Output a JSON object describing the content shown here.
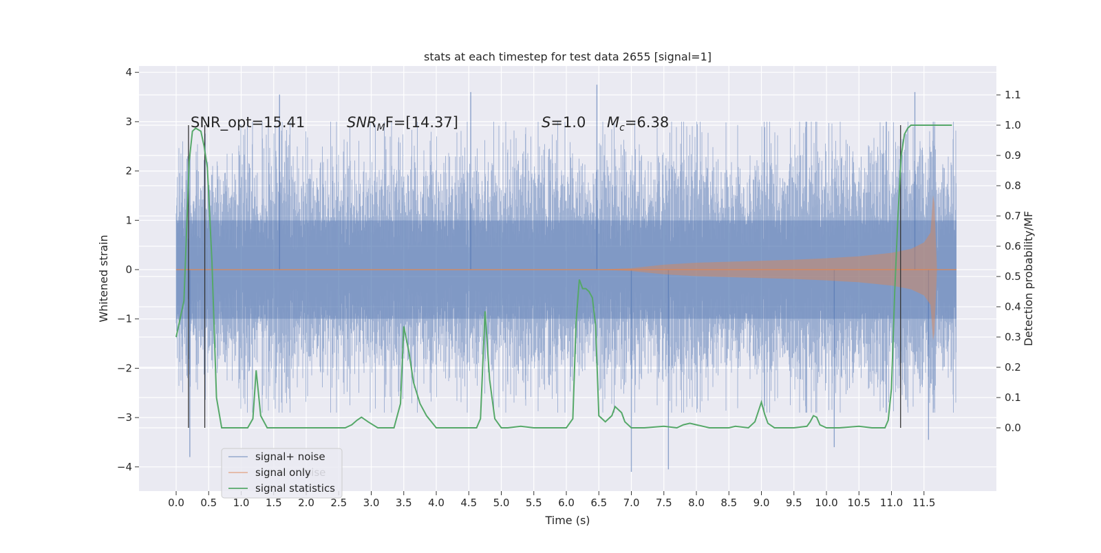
{
  "chart_data": {
    "type": "line",
    "title": "stats at each timestep for test data 2655 [signal=1]",
    "xlabel": "Time (s)",
    "ylabel_left": "Whitened strain",
    "ylabel_right": "Detection probability/MF",
    "xlim": [
      -0.6,
      12.6
    ],
    "ylim_left": [
      -4.45,
      4.1
    ],
    "ylim_right": [
      -0.2,
      1.2
    ],
    "x_ticks": [
      "0.0",
      "0.5",
      "1.0",
      "1.5",
      "2.0",
      "2.5",
      "3.0",
      "3.5",
      "4.0",
      "4.5",
      "5.0",
      "5.5",
      "6.0",
      "6.5",
      "7.0",
      "7.5",
      "8.0",
      "8.5",
      "9.0",
      "9.5",
      "10.0",
      "10.5",
      "11.0",
      "11.5"
    ],
    "y_ticks_left": [
      "−4",
      "−3",
      "−2",
      "−1",
      "0",
      "1",
      "2",
      "3",
      "4"
    ],
    "y_ticks_right": [
      "0.0",
      "0.1",
      "0.2",
      "0.3",
      "0.4",
      "0.5",
      "0.6",
      "0.7",
      "0.8",
      "0.9",
      "1.0",
      "1.1"
    ],
    "grid": true,
    "legend_position": "lower-left",
    "annotations": {
      "snr_opt": "SNR_opt=15.41",
      "snr_mf_sym": "SNR",
      "snr_mf_sub": "M",
      "snr_mf_tail": "F=[14.37]",
      "s_sym": "S",
      "s_val": "=1.0",
      "mc_sym": "M",
      "mc_sub": "c",
      "mc_val": "=6.38"
    },
    "series": [
      {
        "name": "signal+ noise",
        "color": "#4c72b0",
        "axis": "left",
        "kind": "noise band",
        "time_range": [
          0.0,
          12.0
        ],
        "typical_range": [
          -1.9,
          1.9
        ],
        "extremes": [
          {
            "x": 1.59,
            "y": 3.55
          },
          {
            "x": 4.53,
            "y": 3.6
          },
          {
            "x": 6.47,
            "y": 3.75
          },
          {
            "x": 11.36,
            "y": 3.6
          },
          {
            "x": 0.21,
            "y": -3.8
          },
          {
            "x": 7.0,
            "y": -4.1
          },
          {
            "x": 7.57,
            "y": -4.05
          },
          {
            "x": 10.12,
            "y": -3.6
          },
          {
            "x": 11.57,
            "y": -3.45
          }
        ]
      },
      {
        "name": "signal only",
        "color": "#dd8452",
        "axis": "left",
        "kind": "chirp envelope",
        "x": [
          0.0,
          6.5,
          7.0,
          7.5,
          8.0,
          8.5,
          9.0,
          9.5,
          10.0,
          10.5,
          11.0,
          11.3,
          11.5,
          11.6,
          11.65,
          11.7,
          12.0
        ],
        "amplitude": [
          0.0,
          0.0,
          0.03,
          0.1,
          0.14,
          0.16,
          0.18,
          0.2,
          0.23,
          0.27,
          0.34,
          0.42,
          0.55,
          0.75,
          1.7,
          0.0,
          0.0
        ]
      },
      {
        "name": "signal statistics",
        "color": "#55a868",
        "axis": "right",
        "x": [
          0.0,
          0.12,
          0.2,
          0.25,
          0.3,
          0.38,
          0.43,
          0.48,
          0.55,
          0.62,
          0.7,
          0.8,
          1.0,
          1.1,
          1.18,
          1.23,
          1.3,
          1.4,
          1.6,
          2.0,
          2.4,
          2.6,
          2.7,
          2.78,
          2.85,
          2.95,
          3.1,
          3.35,
          3.45,
          3.5,
          3.58,
          3.65,
          3.75,
          3.85,
          4.0,
          4.2,
          4.6,
          4.62,
          4.68,
          4.75,
          4.82,
          4.9,
          5.0,
          5.1,
          5.3,
          5.5,
          6.0,
          6.1,
          6.15,
          6.2,
          6.25,
          6.3,
          6.35,
          6.4,
          6.45,
          6.5,
          6.6,
          6.7,
          6.75,
          6.85,
          6.9,
          7.0,
          7.05,
          7.2,
          7.5,
          7.7,
          7.8,
          7.9,
          8.0,
          8.2,
          8.5,
          8.6,
          8.8,
          8.9,
          9.0,
          9.05,
          9.1,
          9.2,
          9.5,
          9.7,
          9.75,
          9.8,
          9.85,
          9.9,
          10.0,
          10.2,
          10.5,
          10.7,
          10.9,
          10.95,
          11.0,
          11.05,
          11.1,
          11.15,
          11.2,
          11.25,
          11.3,
          11.4,
          11.6,
          11.8,
          11.93
        ],
        "y": [
          0.3,
          0.42,
          0.88,
          0.98,
          0.99,
          0.98,
          0.93,
          0.86,
          0.55,
          0.1,
          0.0,
          0.0,
          0.0,
          0.0,
          0.03,
          0.19,
          0.04,
          0.0,
          0.0,
          0.0,
          0.0,
          0.0,
          0.01,
          0.025,
          0.035,
          0.02,
          0.0,
          0.0,
          0.08,
          0.335,
          0.25,
          0.15,
          0.08,
          0.04,
          0.0,
          0.0,
          0.0,
          0.0,
          0.03,
          0.385,
          0.16,
          0.03,
          0.0,
          0.0,
          0.005,
          0.0,
          0.0,
          0.03,
          0.35,
          0.49,
          0.46,
          0.46,
          0.45,
          0.43,
          0.34,
          0.04,
          0.02,
          0.04,
          0.07,
          0.05,
          0.02,
          0.0,
          0.0,
          0.0,
          0.005,
          0.0,
          0.01,
          0.015,
          0.01,
          0.0,
          0.0,
          0.005,
          0.0,
          0.02,
          0.085,
          0.045,
          0.015,
          0.0,
          0.0,
          0.005,
          0.02,
          0.04,
          0.035,
          0.01,
          0.0,
          0.0,
          0.005,
          0.0,
          0.0,
          0.025,
          0.13,
          0.45,
          0.7,
          0.9,
          0.97,
          0.99,
          1.0,
          1.0,
          1.0,
          1.0,
          1.0
        ]
      }
    ],
    "vertical_markers": [
      {
        "x": 0.19,
        "axis": "right",
        "from": 0.0,
        "to": 1.0
      },
      {
        "x": 0.44,
        "axis": "right",
        "from": 0.0,
        "to": 1.0
      },
      {
        "x": 11.14,
        "axis": "right",
        "from": 0.0,
        "to": 1.0
      }
    ],
    "legend": {
      "entries": [
        "signal+ noise",
        "signal only",
        "signal statistics"
      ],
      "ghost_text": "oise"
    },
    "colors": {
      "background": "#eaeaf2",
      "grid": "#ffffff",
      "noise": "#4c72b0",
      "signal": "#dd8452",
      "stats": "#55a868",
      "markers": "#333333"
    }
  }
}
